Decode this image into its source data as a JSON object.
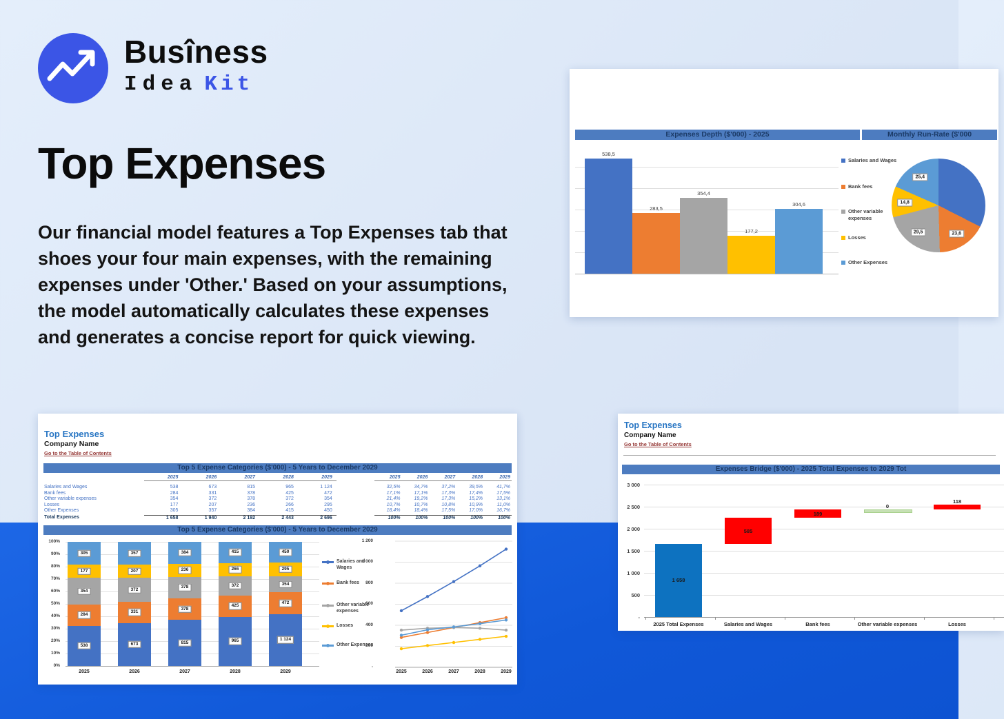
{
  "brand": {
    "word1": "Busîness",
    "word2": "Idea",
    "word3": "Kit",
    "accent_color": "#3b55e6"
  },
  "hero": {
    "title": "Top Expenses",
    "paragraph": "Our financial model features a Top Expenses tab that shoes your four main expenses, with the remaining expenses under 'Other.' Based on your assumptions, the model automatically calculates these expenses and generates a concise report for quick viewing."
  },
  "sheet": {
    "title": "Top Expenses",
    "company": "Company Name",
    "toc_link": "Go to the Table of Contents"
  },
  "series": {
    "names": [
      "Salaries and Wages",
      "Bank fees",
      "Other variable expenses",
      "Losses",
      "Other Expenses"
    ],
    "colors": [
      "#4472c4",
      "#ed7d31",
      "#a5a5a5",
      "#ffc000",
      "#5b9bd5"
    ]
  },
  "chart_data": [
    {
      "id": "expenses_depth",
      "type": "bar",
      "title": "Expenses Depth ($'000) - 2025",
      "categories": [
        "Salaries and Wages",
        "Bank fees",
        "Other variable expenses",
        "Losses",
        "Other Expenses"
      ],
      "values": [
        538.5,
        283.5,
        354.4,
        177.2,
        304.6
      ],
      "labels": [
        "538,5",
        "283,5",
        "354,4",
        "177,2",
        "304,6"
      ],
      "ylim": [
        0,
        550
      ],
      "gridline_step": 100,
      "grid": true,
      "legend_position": "right"
    },
    {
      "id": "monthly_runrate",
      "type": "pie",
      "title": "Monthly Run-Rate ($'000",
      "slices": [
        "Salaries and Wages",
        "Bank fees",
        "Other variable expenses",
        "Losses",
        "Other Expenses"
      ],
      "values": [
        44.9,
        23.6,
        29.5,
        14.8,
        25.4
      ],
      "labels": [
        "",
        "23,6",
        "29,5",
        "14,8",
        "25,4"
      ]
    },
    {
      "id": "top5_table",
      "type": "table",
      "title": "Top 5 Expense Categories ($'000) - 5 Years to December 2029",
      "years": [
        "2025",
        "2026",
        "2027",
        "2028",
        "2029"
      ],
      "rows": [
        {
          "label": "Salaries and Wages",
          "values": [
            "538",
            "673",
            "815",
            "965",
            "1 124"
          ],
          "pcts": [
            "32,5%",
            "34,7%",
            "37,2%",
            "39,5%",
            "41,7%"
          ]
        },
        {
          "label": "Bank fees",
          "values": [
            "284",
            "331",
            "378",
            "425",
            "472"
          ],
          "pcts": [
            "17,1%",
            "17,1%",
            "17,3%",
            "17,4%",
            "17,5%"
          ]
        },
        {
          "label": "Other variable expenses",
          "values": [
            "354",
            "372",
            "378",
            "372",
            "354"
          ],
          "pcts": [
            "21,4%",
            "19,2%",
            "17,3%",
            "15,2%",
            "13,1%"
          ]
        },
        {
          "label": "Losses",
          "values": [
            "177",
            "207",
            "236",
            "266",
            "295"
          ],
          "pcts": [
            "10,7%",
            "10,7%",
            "10,8%",
            "10,9%",
            "11,0%"
          ]
        },
        {
          "label": "Other Expenses",
          "values": [
            "305",
            "357",
            "384",
            "415",
            "450"
          ],
          "pcts": [
            "18,4%",
            "18,4%",
            "17,5%",
            "17,0%",
            "16,7%"
          ]
        }
      ],
      "total": {
        "label": "Total Expenses",
        "values": [
          "1 658",
          "1 940",
          "2 192",
          "2 443",
          "2 696"
        ],
        "pcts": [
          "100%",
          "100%",
          "100%",
          "100%",
          "100%"
        ]
      }
    },
    {
      "id": "stacked_100",
      "type": "bar",
      "subtype": "stacked100",
      "title": "Top 5 Expense Categories ($'000) - 5 Years to December 2029",
      "categories": [
        "2025",
        "2026",
        "2027",
        "2028",
        "2029"
      ],
      "series": [
        {
          "name": "Salaries and Wages",
          "values": [
            538,
            673,
            815,
            965,
            1124
          ],
          "labels": [
            "538",
            "673",
            "815",
            "965",
            "1 124"
          ]
        },
        {
          "name": "Bank fees",
          "values": [
            284,
            331,
            378,
            425,
            472
          ],
          "labels": [
            "284",
            "331",
            "378",
            "425",
            "472"
          ]
        },
        {
          "name": "Other variable expenses",
          "values": [
            354,
            372,
            378,
            372,
            354
          ],
          "labels": [
            "354",
            "372",
            "378",
            "372",
            "354"
          ]
        },
        {
          "name": "Losses",
          "values": [
            177,
            207,
            236,
            266,
            295
          ],
          "labels": [
            "177",
            "207",
            "236",
            "266",
            "295"
          ]
        },
        {
          "name": "Other Expenses",
          "values": [
            305,
            357,
            384,
            415,
            450
          ],
          "labels": [
            "305",
            "357",
            "384",
            "415",
            "450"
          ]
        }
      ],
      "yticks": [
        "0%",
        "10%",
        "20%",
        "30%",
        "40%",
        "50%",
        "60%",
        "70%",
        "80%",
        "90%",
        "100%"
      ]
    },
    {
      "id": "five_year_lines",
      "type": "line",
      "categories": [
        "2025",
        "2026",
        "2027",
        "2028",
        "2029"
      ],
      "series": [
        {
          "name": "Salaries and Wages",
          "values": [
            538,
            673,
            815,
            965,
            1124
          ]
        },
        {
          "name": "Bank fees",
          "values": [
            284,
            331,
            378,
            425,
            472
          ]
        },
        {
          "name": "Other variable expenses",
          "values": [
            354,
            372,
            378,
            372,
            354
          ]
        },
        {
          "name": "Losses",
          "values": [
            177,
            207,
            236,
            266,
            295
          ]
        },
        {
          "name": "Other Expenses",
          "values": [
            305,
            357,
            384,
            415,
            450
          ]
        }
      ],
      "ylim": [
        0,
        1200
      ],
      "yticks": [
        "-",
        "200",
        "400",
        "600",
        "800",
        "1 000",
        "1 200"
      ],
      "legend_position": "left"
    },
    {
      "id": "expenses_bridge",
      "type": "waterfall",
      "title": "Expenses Bridge ($'000) - 2025 Total Expenses to 2029 Tot",
      "categories": [
        "2025 Total Expenses",
        "Salaries and Wages",
        "Bank fees",
        "Other variable expenses",
        "Losses"
      ],
      "values": [
        1658,
        585,
        189,
        0,
        118
      ],
      "labels": [
        "1 658",
        "585",
        "189",
        "0",
        "118"
      ],
      "bar_colors": [
        "#0d72c0",
        "#ff0000",
        "#ff0000",
        "#c6e0b4",
        "#ff0000"
      ],
      "ylim": [
        0,
        3000
      ],
      "yticks": [
        "-",
        "500",
        "1 000",
        "1 500",
        "2 000",
        "2 500",
        "3 000"
      ]
    }
  ]
}
